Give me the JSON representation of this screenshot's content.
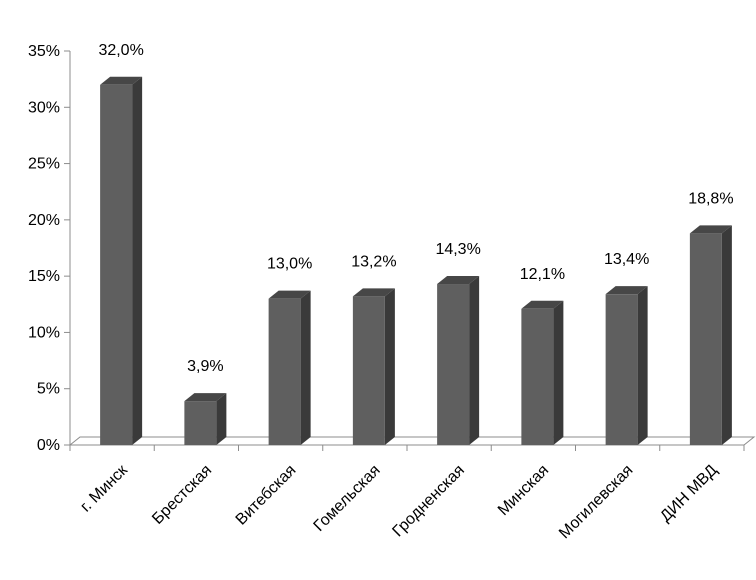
{
  "chart_data": {
    "type": "bar",
    "title": "",
    "xlabel": "",
    "ylabel": "",
    "categories": [
      "г. Минск",
      "Брестская",
      "Витебская",
      "Гомельская",
      "Гродненская",
      "Минская",
      "Могилевская",
      "ДИН МВД"
    ],
    "values": [
      32.0,
      3.9,
      13.0,
      13.2,
      14.3,
      12.1,
      13.4,
      18.8
    ],
    "value_labels": [
      "32,0%",
      "3,9%",
      "13,0%",
      "13,2%",
      "14,3%",
      "12,1%",
      "13,4%",
      "18,8%"
    ],
    "ylim": [
      0,
      35
    ],
    "y_ticks": [
      0,
      5,
      10,
      15,
      20,
      25,
      30,
      35
    ],
    "y_tick_labels": [
      "0%",
      "5%",
      "10%",
      "15%",
      "20%",
      "25%",
      "30%",
      "35%"
    ],
    "grid": false,
    "legend": "none",
    "bar_style": "3d",
    "colors": {
      "bar_front": "#5f5f5f",
      "bar_side": "#3a3a3a",
      "bar_top": "#474747",
      "floor": "#ffffff",
      "axis": "#8c8c8c"
    }
  }
}
